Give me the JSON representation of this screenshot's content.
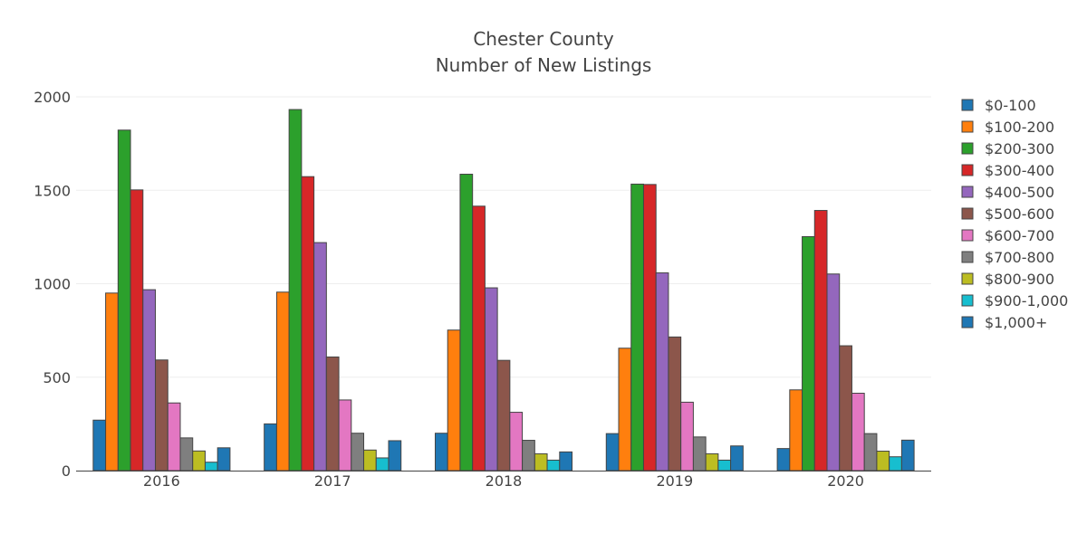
{
  "chart_data": {
    "type": "bar",
    "title": "Chester County",
    "subtitle": "Number of New Listings",
    "xlabel": "",
    "ylabel": "",
    "ylim": [
      0,
      2000
    ],
    "yticks": [
      0,
      500,
      1000,
      1500,
      2000
    ],
    "grid": true,
    "legend_position": "right",
    "categories": [
      "2016",
      "2017",
      "2018",
      "2019",
      "2020"
    ],
    "series": [
      {
        "name": "$0-100",
        "color": "#1f77b4",
        "values": [
          270,
          250,
          200,
          198,
          118
        ]
      },
      {
        "name": "$100-200",
        "color": "#ff7f0e",
        "values": [
          950,
          955,
          752,
          655,
          432
        ]
      },
      {
        "name": "$200-300",
        "color": "#2ca02c",
        "values": [
          1822,
          1932,
          1586,
          1533,
          1252
        ]
      },
      {
        "name": "$300-400",
        "color": "#d62728",
        "values": [
          1502,
          1573,
          1415,
          1531,
          1392
        ]
      },
      {
        "name": "$400-500",
        "color": "#9467bd",
        "values": [
          968,
          1220,
          978,
          1058,
          1052
        ]
      },
      {
        "name": "$500-600",
        "color": "#8c564b",
        "values": [
          592,
          608,
          590,
          715,
          668
        ]
      },
      {
        "name": "$600-700",
        "color": "#e377c2",
        "values": [
          362,
          378,
          312,
          366,
          414
        ]
      },
      {
        "name": "$700-800",
        "color": "#7f7f7f",
        "values": [
          175,
          200,
          162,
          180,
          198
        ]
      },
      {
        "name": "$800-900",
        "color": "#bcbd22",
        "values": [
          105,
          110,
          90,
          90,
          104
        ]
      },
      {
        "name": "$900-1,000",
        "color": "#17becf",
        "values": [
          45,
          68,
          56,
          56,
          74
        ]
      },
      {
        "name": "$1,000+",
        "color": "#1f77b4",
        "values": [
          122,
          160,
          100,
          132,
          163
        ]
      }
    ]
  }
}
